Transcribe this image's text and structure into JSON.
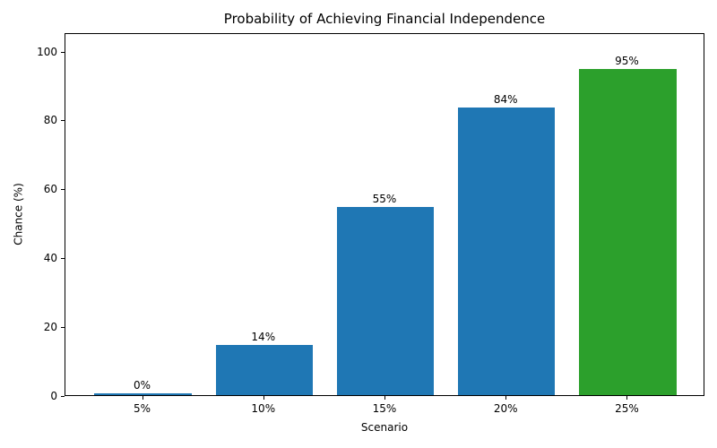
{
  "chart_data": {
    "type": "bar",
    "title": "Probability of Achieving Financial Independence",
    "xlabel": "Scenario",
    "ylabel": "Chance (%)",
    "categories": [
      "5%",
      "10%",
      "15%",
      "20%",
      "25%"
    ],
    "values": [
      0.4,
      14.5,
      54.8,
      83.6,
      94.9
    ],
    "bar_labels": [
      "0%",
      "14%",
      "55%",
      "84%",
      "95%"
    ],
    "bar_colors": [
      "#1f77b4",
      "#1f77b4",
      "#1f77b4",
      "#1f77b4",
      "#2ca02c"
    ],
    "yticks": [
      0,
      20,
      40,
      60,
      80,
      100
    ],
    "ylim": [
      0,
      105.5
    ],
    "grid": false,
    "legend": null,
    "background_color": "#ffffff",
    "axis_color": "#000000"
  }
}
